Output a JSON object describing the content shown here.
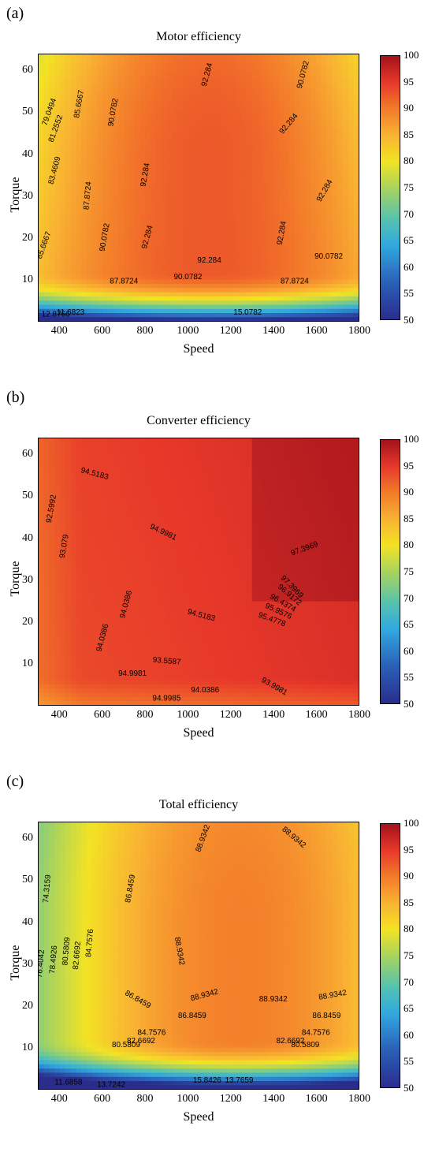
{
  "chart_data": [
    {
      "type": "contour",
      "panel_label": "(a)",
      "title": "Motor efficiency",
      "xlabel": "Speed",
      "ylabel": "Torque",
      "xlim": [
        300,
        1800
      ],
      "ylim": [
        0,
        64
      ],
      "xticks": [
        "400",
        "600",
        "800",
        "1000",
        "1200",
        "1400",
        "1600",
        "1800"
      ],
      "yticks": [
        "10",
        "20",
        "30",
        "40",
        "50",
        "60"
      ],
      "colorbar": {
        "min": 50,
        "max": 100,
        "ticks": [
          "50",
          "55",
          "60",
          "65",
          "70",
          "75",
          "80",
          "85",
          "90",
          "95",
          "100"
        ]
      },
      "contour_levels": [
        {
          "label": "79.0494",
          "x": 360,
          "y": 50,
          "angle": -70
        },
        {
          "label": "81.2552",
          "x": 390,
          "y": 46,
          "angle": -70
        },
        {
          "label": "83.4609",
          "x": 385,
          "y": 36,
          "angle": -75
        },
        {
          "label": "85.6667",
          "x": 500,
          "y": 52,
          "angle": -80
        },
        {
          "label": "85.6667",
          "x": 335,
          "y": 18,
          "angle": -70
        },
        {
          "label": "87.8724",
          "x": 540,
          "y": 30,
          "angle": -85
        },
        {
          "label": "90.0782",
          "x": 660,
          "y": 50,
          "angle": -80
        },
        {
          "label": "90.0782",
          "x": 620,
          "y": 20,
          "angle": -80
        },
        {
          "label": "92.284",
          "x": 810,
          "y": 35,
          "angle": -80
        },
        {
          "label": "92.284",
          "x": 820,
          "y": 20,
          "angle": -75
        },
        {
          "label": "92.284",
          "x": 1100,
          "y": 59,
          "angle": -75
        },
        {
          "label": "90.0782",
          "x": 1550,
          "y": 59,
          "angle": -75
        },
        {
          "label": "92.284",
          "x": 1480,
          "y": 47,
          "angle": -50
        },
        {
          "label": "92.284",
          "x": 1650,
          "y": 31,
          "angle": -60
        },
        {
          "label": "92.284",
          "x": 1450,
          "y": 21,
          "angle": -80
        },
        {
          "label": "92.284",
          "x": 1100,
          "y": 14,
          "angle": 0
        },
        {
          "label": "90.0782",
          "x": 1660,
          "y": 15,
          "angle": 0
        },
        {
          "label": "90.0782",
          "x": 1000,
          "y": 10,
          "angle": 0
        },
        {
          "label": "87.8724",
          "x": 700,
          "y": 9,
          "angle": 0
        },
        {
          "label": "87.8724",
          "x": 1500,
          "y": 9,
          "angle": 0
        },
        {
          "label": "11.6823",
          "x": 450,
          "y": 1.5,
          "angle": 0
        },
        {
          "label": "12.8766",
          "x": 380,
          "y": 1,
          "angle": 0
        },
        {
          "label": "15.0782",
          "x": 1280,
          "y": 1.5,
          "angle": 0
        }
      ]
    },
    {
      "type": "contour",
      "panel_label": "(b)",
      "title": "Converter efficiency",
      "xlabel": "Speed",
      "ylabel": "Torque",
      "xlim": [
        300,
        1800
      ],
      "ylim": [
        0,
        64
      ],
      "xticks": [
        "400",
        "600",
        "800",
        "1000",
        "1200",
        "1400",
        "1600",
        "1800"
      ],
      "yticks": [
        "10",
        "20",
        "30",
        "40",
        "50",
        "60"
      ],
      "colorbar": {
        "min": 50,
        "max": 100,
        "ticks": [
          "50",
          "55",
          "60",
          "65",
          "70",
          "75",
          "80",
          "85",
          "90",
          "95",
          "100"
        ]
      },
      "contour_levels": [
        {
          "label": "94.5183",
          "x": 560,
          "y": 55,
          "angle": 15
        },
        {
          "label": "92.5992",
          "x": 370,
          "y": 47,
          "angle": -80
        },
        {
          "label": "93.079",
          "x": 430,
          "y": 38,
          "angle": -80
        },
        {
          "label": "94.9981",
          "x": 880,
          "y": 41,
          "angle": 25
        },
        {
          "label": "97.3969",
          "x": 1550,
          "y": 37,
          "angle": -20
        },
        {
          "label": "97.3969",
          "x": 1480,
          "y": 28,
          "angle": 45
        },
        {
          "label": "96.9172",
          "x": 1470,
          "y": 26,
          "angle": 40
        },
        {
          "label": "96.4374",
          "x": 1440,
          "y": 24,
          "angle": 30
        },
        {
          "label": "95.9576",
          "x": 1420,
          "y": 22,
          "angle": 25
        },
        {
          "label": "95.4778",
          "x": 1390,
          "y": 20,
          "angle": 20
        },
        {
          "label": "94.0386",
          "x": 720,
          "y": 24,
          "angle": -75
        },
        {
          "label": "94.0386",
          "x": 610,
          "y": 16,
          "angle": -75
        },
        {
          "label": "94.5183",
          "x": 1060,
          "y": 21,
          "angle": 15
        },
        {
          "label": "93.5587",
          "x": 900,
          "y": 10,
          "angle": 5
        },
        {
          "label": "94.9981",
          "x": 740,
          "y": 7,
          "angle": 0
        },
        {
          "label": "94.0386",
          "x": 1080,
          "y": 3,
          "angle": 0
        },
        {
          "label": "94.9985",
          "x": 900,
          "y": 1,
          "angle": 0
        },
        {
          "label": "93.9981",
          "x": 1400,
          "y": 4,
          "angle": 30
        }
      ]
    },
    {
      "type": "contour",
      "panel_label": "(c)",
      "title": "Total efficiency",
      "xlabel": "Speed",
      "ylabel": "Torque",
      "xlim": [
        300,
        1800
      ],
      "ylim": [
        0,
        64
      ],
      "xticks": [
        "400",
        "600",
        "800",
        "1000",
        "1200",
        "1400",
        "1600",
        "1800"
      ],
      "yticks": [
        "10",
        "20",
        "30",
        "40",
        "50",
        "60"
      ],
      "colorbar": {
        "min": 50,
        "max": 100,
        "ticks": [
          "50",
          "55",
          "60",
          "65",
          "70",
          "75",
          "80",
          "85",
          "90",
          "95",
          "100"
        ]
      },
      "contour_levels": [
        {
          "label": "74.3159",
          "x": 350,
          "y": 48,
          "angle": -85
        },
        {
          "label": "76.4042",
          "x": 320,
          "y": 30,
          "angle": -85
        },
        {
          "label": "78.4926",
          "x": 380,
          "y": 31,
          "angle": -85
        },
        {
          "label": "80.5809",
          "x": 440,
          "y": 33,
          "angle": -85
        },
        {
          "label": "82.6692",
          "x": 490,
          "y": 32,
          "angle": -85
        },
        {
          "label": "84.7576",
          "x": 550,
          "y": 35,
          "angle": -85
        },
        {
          "label": "86.8459",
          "x": 740,
          "y": 48,
          "angle": -80
        },
        {
          "label": "88.9342",
          "x": 1080,
          "y": 60,
          "angle": -70
        },
        {
          "label": "88.9342",
          "x": 1490,
          "y": 60,
          "angle": 40
        },
        {
          "label": "88.9342",
          "x": 950,
          "y": 33,
          "angle": 80
        },
        {
          "label": "88.9342",
          "x": 1080,
          "y": 22,
          "angle": -15
        },
        {
          "label": "88.9342",
          "x": 1400,
          "y": 21,
          "angle": 0
        },
        {
          "label": "88.9342",
          "x": 1680,
          "y": 22,
          "angle": -10
        },
        {
          "label": "86.8459",
          "x": 760,
          "y": 21,
          "angle": 30
        },
        {
          "label": "86.8459",
          "x": 1020,
          "y": 17,
          "angle": 0
        },
        {
          "label": "86.8459",
          "x": 1650,
          "y": 17,
          "angle": 0
        },
        {
          "label": "84.7576",
          "x": 830,
          "y": 13,
          "angle": 0
        },
        {
          "label": "84.7576",
          "x": 1600,
          "y": 13,
          "angle": 0
        },
        {
          "label": "82.6692",
          "x": 780,
          "y": 11,
          "angle": 0
        },
        {
          "label": "82.6692",
          "x": 1480,
          "y": 11,
          "angle": 0
        },
        {
          "label": "80.5809",
          "x": 710,
          "y": 10,
          "angle": 0
        },
        {
          "label": "80.5809",
          "x": 1550,
          "y": 10,
          "angle": 0
        },
        {
          "label": "11.6858",
          "x": 440,
          "y": 1,
          "angle": 0
        },
        {
          "label": "13.7242",
          "x": 640,
          "y": 0.5,
          "angle": 0
        },
        {
          "label": "15.8426",
          "x": 1090,
          "y": 1.5,
          "angle": 0
        },
        {
          "label": "13.7659",
          "x": 1240,
          "y": 1.5,
          "angle": 0
        }
      ]
    }
  ]
}
